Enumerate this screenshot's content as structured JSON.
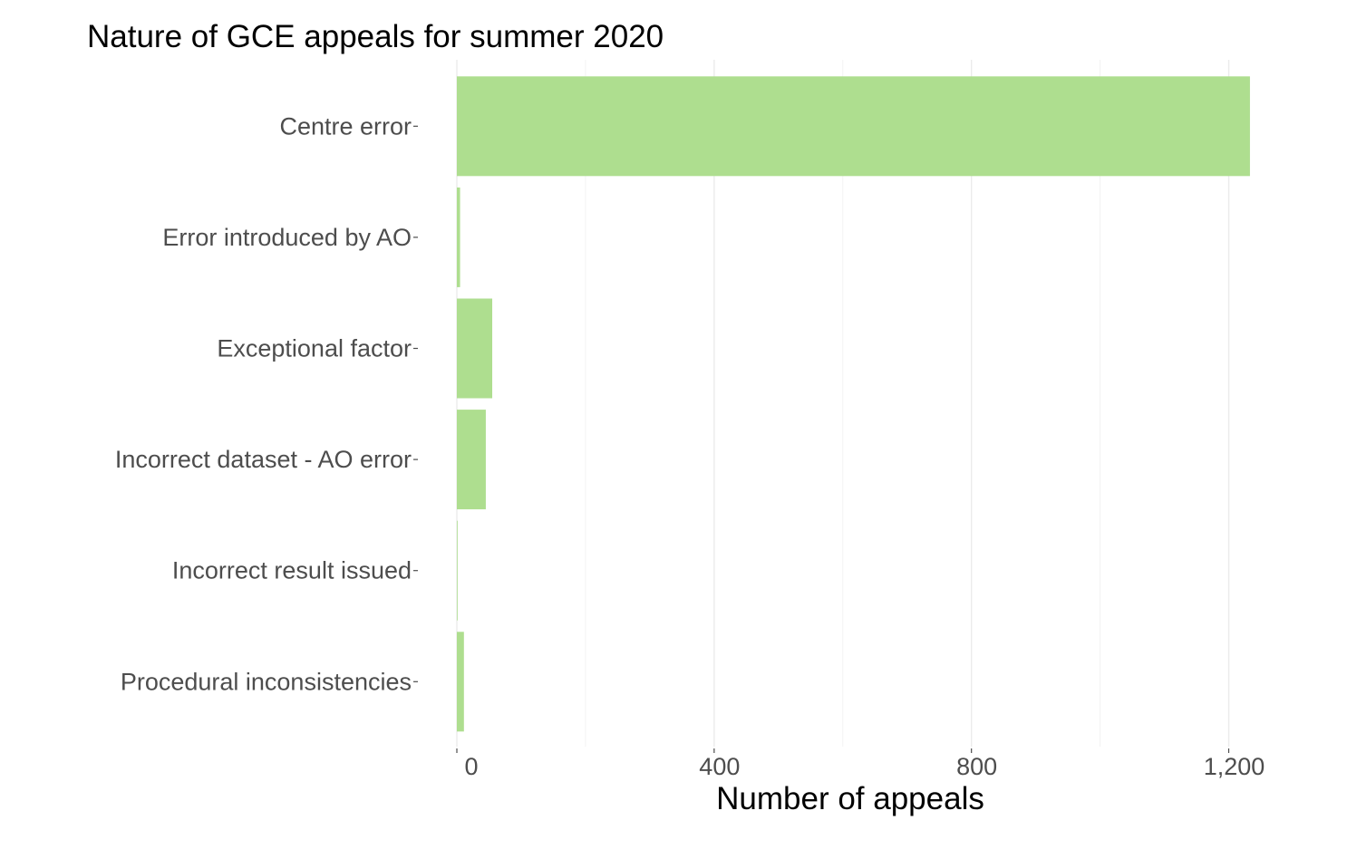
{
  "chart_data": {
    "type": "bar",
    "orientation": "horizontal",
    "title": "Nature of GCE appeals for summer 2020",
    "xlabel": "Number of appeals",
    "ylabel": "",
    "categories": [
      "Centre error",
      "Error introduced by AO",
      "Exceptional factor",
      "Incorrect dataset - AO error",
      "Incorrect result issued",
      "Procedural inconsistencies"
    ],
    "values": [
      1233,
      5,
      55,
      45,
      1,
      11
    ],
    "xlim": [
      0,
      1250
    ],
    "xticks": [
      0,
      400,
      800,
      1200
    ],
    "xtick_labels": [
      "0",
      "400",
      "800",
      "1,200"
    ],
    "bar_color": "#aede8f",
    "grid": true,
    "legend": "none"
  }
}
